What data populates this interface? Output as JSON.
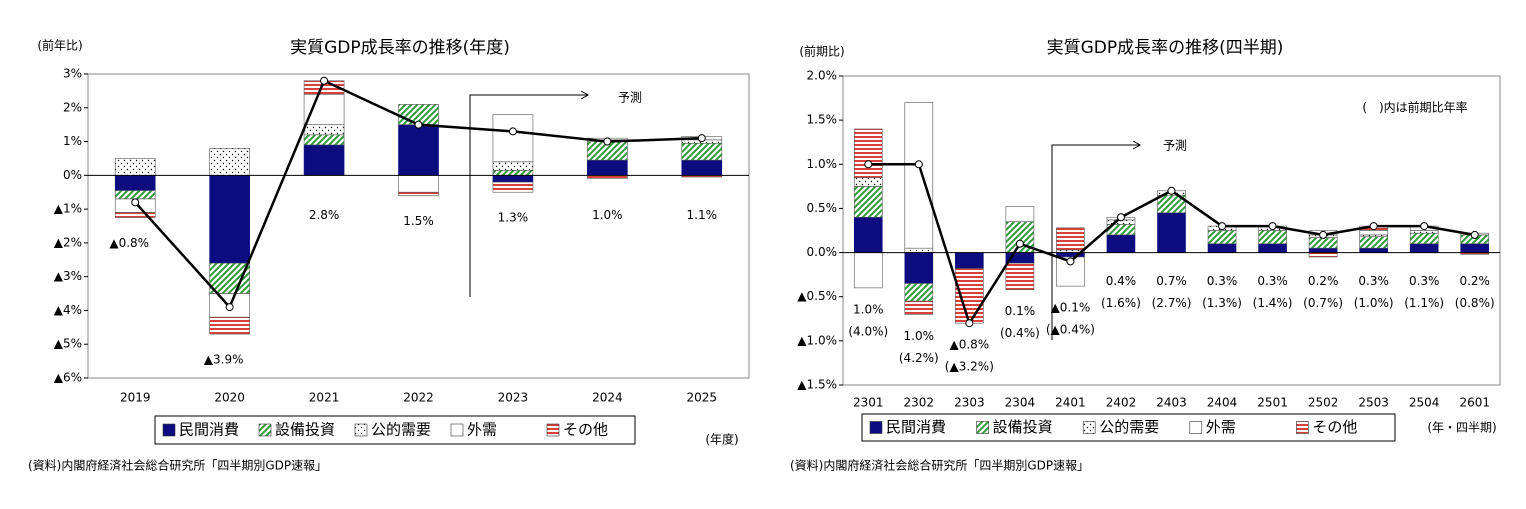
{
  "chart_data": [
    {
      "type": "bar",
      "stacked": true,
      "title": "実質GDP成長率の推移(年度)",
      "y_label": "(前年比)",
      "x_label": "(年度)",
      "source": "(資料)内閣府経済社会総合研究所「四半期別GDP速報」",
      "forecast_label": "予測",
      "categories": [
        "2019",
        "2020",
        "2021",
        "2022",
        "2023",
        "2024",
        "2025"
      ],
      "series": [
        {
          "name": "民間消費",
          "color": "#0c0c80",
          "pattern": "solid",
          "values": [
            -0.45,
            -2.6,
            0.9,
            1.5,
            -0.2,
            0.45,
            0.45
          ]
        },
        {
          "name": "設備投資",
          "color": "#2e9a3a",
          "pattern": "hatch",
          "values": [
            -0.25,
            -0.9,
            0.3,
            0.6,
            0.15,
            0.55,
            0.5
          ]
        },
        {
          "name": "公的需要",
          "color": "#000000",
          "pattern": "dots",
          "values": [
            0.5,
            0.8,
            0.3,
            0.0,
            0.25,
            0.05,
            0.1
          ]
        },
        {
          "name": "外需",
          "color": "#ffffff",
          "pattern": "none",
          "values": [
            -0.4,
            -0.7,
            0.9,
            -0.5,
            1.4,
            0.05,
            0.1
          ]
        },
        {
          "name": "その他",
          "color": "#d9403a",
          "pattern": "stripes",
          "values": [
            -0.15,
            -0.5,
            0.4,
            -0.1,
            -0.3,
            -0.1,
            -0.05
          ]
        }
      ],
      "line": {
        "color": "#000000",
        "values": [
          -0.8,
          -3.9,
          2.8,
          1.5,
          1.3,
          1.0,
          1.1
        ],
        "value_labels": [
          "▲0.8%",
          "▲3.9%",
          "2.8%",
          "1.5%",
          "1.3%",
          "1.0%",
          "1.1%"
        ]
      },
      "ylim": [
        -6,
        3
      ],
      "yticks": [
        {
          "value": -6,
          "label": "▲6%"
        },
        {
          "value": -5,
          "label": "▲5%"
        },
        {
          "value": -4,
          "label": "▲4%"
        },
        {
          "value": -3,
          "label": "▲3%"
        },
        {
          "value": -2,
          "label": "▲2%"
        },
        {
          "value": -1,
          "label": "▲1%"
        },
        {
          "value": 0,
          "label": "0%"
        },
        {
          "value": 1,
          "label": "1%"
        },
        {
          "value": 2,
          "label": "2%"
        },
        {
          "value": 3,
          "label": "3%"
        }
      ]
    },
    {
      "type": "bar",
      "stacked": true,
      "title": "実質GDP成長率の推移(四半期)",
      "y_label": "(前期比)",
      "x_label": "(年・四半期)",
      "source": "(資料)内閣府経済社会総合研究所「四半期別GDP速報」",
      "forecast_label": "予測",
      "note": "(　)内は前期比年率",
      "categories": [
        "2301",
        "2302",
        "2303",
        "2304",
        "2401",
        "2402",
        "2403",
        "2404",
        "2501",
        "2502",
        "2503",
        "2504",
        "2601"
      ],
      "series": [
        {
          "name": "民間消費",
          "color": "#0c0c80",
          "pattern": "solid",
          "values": [
            0.4,
            -0.35,
            -0.18,
            -0.12,
            -0.05,
            0.2,
            0.45,
            0.1,
            0.1,
            0.05,
            0.05,
            0.1,
            0.1
          ]
        },
        {
          "name": "設備投資",
          "color": "#2e9a3a",
          "pattern": "hatch",
          "values": [
            0.35,
            -0.2,
            0.0,
            0.35,
            0.0,
            0.12,
            0.2,
            0.15,
            0.15,
            0.12,
            0.13,
            0.12,
            0.1
          ]
        },
        {
          "name": "公的需要",
          "color": "#000000",
          "pattern": "dots",
          "values": [
            0.1,
            0.05,
            0.0,
            0.0,
            0.03,
            0.05,
            0.05,
            0.05,
            0.05,
            0.03,
            0.02,
            0.03,
            0.02
          ]
        },
        {
          "name": "外需",
          "color": "#ffffff",
          "pattern": "none",
          "values": [
            -0.4,
            1.65,
            0.0,
            0.17,
            -0.33,
            0.03,
            0.0,
            0.0,
            0.0,
            0.05,
            0.05,
            0.05,
            0.0
          ]
        },
        {
          "name": "その他",
          "color": "#d9403a",
          "pattern": "stripes",
          "values": [
            0.55,
            -0.15,
            -0.62,
            -0.3,
            0.25,
            0.0,
            0.0,
            0.0,
            0.0,
            -0.05,
            0.05,
            0.0,
            -0.02
          ]
        }
      ],
      "line": {
        "color": "#000000",
        "values": [
          1.0,
          1.0,
          -0.8,
          0.1,
          -0.1,
          0.4,
          0.7,
          0.3,
          0.3,
          0.2,
          0.3,
          0.3,
          0.2
        ],
        "value_labels": [
          "1.0%",
          "1.0%",
          "▲0.8%",
          "0.1%",
          "▲0.1%",
          "0.4%",
          "0.7%",
          "0.3%",
          "0.3%",
          "0.2%",
          "0.3%",
          "0.3%",
          "0.2%"
        ],
        "annualized_labels": [
          "(4.0%)",
          "(4.2%)",
          "(▲3.2%)",
          "(0.4%)",
          "(▲0.4%)",
          "(1.6%)",
          "(2.7%)",
          "(1.3%)",
          "(1.4%)",
          "(0.7%)",
          "(1.0%)",
          "(1.1%)",
          "(0.8%)"
        ]
      },
      "ylim": [
        -1.5,
        2.0
      ],
      "yticks": [
        {
          "value": -1.5,
          "label": "▲1.5%"
        },
        {
          "value": -1.0,
          "label": "▲1.0%"
        },
        {
          "value": -0.5,
          "label": "▲0.5%"
        },
        {
          "value": 0,
          "label": "0.0%"
        },
        {
          "value": 0.5,
          "label": "0.5%"
        },
        {
          "value": 1.0,
          "label": "1.0%"
        },
        {
          "value": 1.5,
          "label": "1.5%"
        },
        {
          "value": 2.0,
          "label": "2.0%"
        }
      ]
    }
  ]
}
